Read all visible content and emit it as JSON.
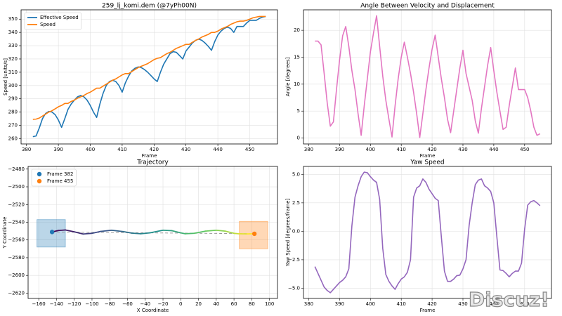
{
  "chart_data": [
    {
      "type": "line",
      "title": "259_lj_komi.dem (@7yPh00N)",
      "x_label": "Frame",
      "y_label": "Speed [units/s]",
      "grid": true,
      "legend": "upper-left",
      "x": [
        382,
        383,
        384,
        385,
        386,
        387,
        388,
        389,
        390,
        391,
        392,
        393,
        394,
        395,
        396,
        397,
        398,
        399,
        400,
        401,
        402,
        403,
        404,
        405,
        406,
        407,
        408,
        409,
        410,
        411,
        412,
        413,
        414,
        415,
        416,
        417,
        418,
        419,
        420,
        421,
        422,
        423,
        424,
        425,
        426,
        427,
        428,
        429,
        430,
        431,
        432,
        433,
        434,
        435,
        436,
        437,
        438,
        439,
        440,
        441,
        442,
        443,
        444,
        445,
        446,
        447,
        448,
        449,
        450,
        451,
        452,
        453,
        454,
        455
      ],
      "xlim": [
        378.3,
        458.7
      ],
      "xticks": [
        380,
        390,
        400,
        410,
        420,
        430,
        440,
        450
      ],
      "ylim": [
        256,
        357
      ],
      "yticks": [
        260,
        270,
        280,
        290,
        300,
        310,
        320,
        330,
        340,
        350
      ],
      "series": [
        {
          "name": "Effective Speed",
          "color": "#1f77b4",
          "values": [
            261.5,
            262,
            268,
            275,
            279,
            280.5,
            280,
            278,
            274,
            268.5,
            275,
            282,
            286,
            289,
            291.5,
            292.5,
            291.5,
            289,
            285,
            280,
            276,
            286,
            294,
            300,
            303,
            304,
            303,
            300,
            295,
            302,
            307,
            311,
            313,
            314,
            313.5,
            312,
            310,
            307.5,
            305,
            303,
            310,
            316,
            320,
            324,
            325.5,
            325,
            322.5,
            320,
            326,
            329,
            332,
            334,
            335,
            334,
            332,
            329.5,
            326.5,
            333,
            338,
            341,
            343,
            344,
            343,
            340,
            344.5,
            344.5,
            344.5,
            347,
            349,
            349,
            349,
            350.5,
            351.5,
            352
          ]
        },
        {
          "name": "Speed",
          "color": "#ff7f0e",
          "values": [
            274.5,
            274.7,
            275.5,
            277,
            278.5,
            280,
            281,
            282.5,
            284,
            285,
            286.5,
            286.5,
            288,
            289,
            290.5,
            291.5,
            292.5,
            294,
            295,
            296.5,
            298,
            298,
            299.5,
            301,
            302.5,
            304,
            305,
            306.5,
            308,
            309,
            309,
            310.5,
            312,
            313.5,
            314.5,
            315.5,
            316.5,
            318,
            319.5,
            320.5,
            321,
            322.5,
            324,
            325,
            326.5,
            328,
            329,
            330,
            331,
            331,
            332.5,
            334,
            335,
            336.5,
            337.5,
            338.5,
            340,
            340,
            341,
            342.5,
            343.5,
            344.5,
            346,
            347,
            348,
            348.5,
            348.5,
            349,
            350,
            351,
            351.5,
            352,
            352,
            352
          ]
        }
      ]
    },
    {
      "type": "line",
      "title": "Angle Between Velocity and Displacement",
      "x_label": "Frame",
      "y_label": "Angle [degrees]",
      "grid": true,
      "x": [
        382,
        383,
        384,
        385,
        386,
        387,
        388,
        389,
        390,
        391,
        392,
        393,
        394,
        395,
        396,
        397,
        398,
        399,
        400,
        401,
        402,
        403,
        404,
        405,
        406,
        407,
        408,
        409,
        410,
        411,
        412,
        413,
        414,
        415,
        416,
        417,
        418,
        419,
        420,
        421,
        422,
        423,
        424,
        425,
        426,
        427,
        428,
        429,
        430,
        431,
        432,
        433,
        434,
        435,
        436,
        437,
        438,
        439,
        440,
        441,
        442,
        443,
        444,
        445,
        446,
        447,
        448,
        449,
        450,
        451,
        452,
        453,
        454,
        455
      ],
      "xlim": [
        378.3,
        458.7
      ],
      "xticks": [
        380,
        390,
        400,
        410,
        420,
        430,
        440,
        450
      ],
      "ylim": [
        -1.1,
        23.8
      ],
      "yticks": [
        0,
        5,
        10,
        15,
        20
      ],
      "series": [
        {
          "color": "#e377c2",
          "values": [
            18,
            18,
            17.3,
            12,
            6.5,
            2.2,
            3,
            9,
            14.5,
            19,
            20.7,
            17,
            12.5,
            9,
            4.5,
            0.5,
            6,
            11,
            16,
            19.5,
            22.7,
            17,
            11.5,
            7,
            3.5,
            0.2,
            6,
            11,
            15,
            17.8,
            15,
            12,
            8.5,
            4.5,
            0.1,
            4.5,
            9,
            13,
            16.5,
            19.1,
            15,
            11,
            7.5,
            3.5,
            1,
            5,
            9,
            13,
            16.3,
            12,
            9.5,
            7,
            3.2,
            0.9,
            5.5,
            9.5,
            13.5,
            16.8,
            12.5,
            8.5,
            5,
            1.6,
            2,
            6,
            9.5,
            13,
            9,
            9,
            9,
            7.5,
            5,
            2,
            0.5,
            0.8
          ]
        }
      ]
    },
    {
      "type": "trajectory",
      "title": "Trajectory",
      "x_label": "X Coordinate",
      "y_label": "Y Coordinate",
      "grid": true,
      "legend": "upper-left",
      "xlim": [
        -172,
        109
      ],
      "xticks": [
        {
          "value": -160,
          "label": "−160"
        },
        {
          "value": -140,
          "label": "−140"
        },
        {
          "value": -120,
          "label": "−120"
        },
        {
          "value": -100,
          "label": "−100"
        },
        {
          "value": -80,
          "label": "−80"
        },
        {
          "value": -60,
          "label": "−60"
        },
        {
          "value": -40,
          "label": "−40"
        },
        {
          "value": -20,
          "label": "−20"
        },
        0,
        20,
        40,
        60,
        80,
        100
      ],
      "ylim": [
        -2626,
        -2477
      ],
      "yticks": [
        {
          "value": -2620,
          "label": "−2620"
        },
        {
          "value": -2600,
          "label": "−2600"
        },
        {
          "value": -2580,
          "label": "−2580"
        },
        {
          "value": -2560,
          "label": "−2560"
        },
        {
          "value": -2540,
          "label": "−2540"
        },
        {
          "value": -2520,
          "label": "−2520"
        },
        {
          "value": -2500,
          "label": "−2500"
        },
        {
          "value": -2480,
          "label": "−2480"
        }
      ],
      "colormap": [
        "#440154",
        "#3b528b",
        "#21918c",
        "#5ec962",
        "#fde725"
      ],
      "path": {
        "x": [
          -145,
          -138,
          -130,
          -120,
          -110,
          -100,
          -90,
          -78,
          -65,
          -55,
          -45,
          -35,
          -20,
          -10,
          0,
          5,
          15,
          28,
          40,
          50,
          60,
          65,
          75,
          83
        ],
        "y": [
          -2551,
          -2549.3,
          -2548.7,
          -2550.8,
          -2553.3,
          -2552.5,
          -2550.3,
          -2549,
          -2550.5,
          -2552.3,
          -2553,
          -2552,
          -2549,
          -2549.5,
          -2552,
          -2553,
          -2552.5,
          -2550,
          -2549,
          -2550,
          -2552.5,
          -2553,
          -2553.2,
          -2553
        ]
      },
      "markers": [
        {
          "name": "Frame 382",
          "x": -145,
          "y": -2551,
          "color": "#1f77b4"
        },
        {
          "name": "Frame 455",
          "x": 83,
          "y": -2553,
          "color": "#ff7f0e"
        }
      ],
      "regions": [
        {
          "xlim": [
            -162,
            -130
          ],
          "ylim": [
            -2568,
            -2537
          ],
          "color": "#1f77b4"
        },
        {
          "xlim": [
            66,
            98
          ],
          "ylim": [
            -2570,
            -2539
          ],
          "color": "#ff7f0e"
        }
      ]
    },
    {
      "type": "line",
      "title": "Yaw Speed",
      "x_label": "Frame",
      "y_label": "Yaw Speed [degrees/frame]",
      "grid": true,
      "x": [
        382,
        383,
        384,
        385,
        386,
        387,
        388,
        389,
        390,
        391,
        392,
        393,
        394,
        395,
        396,
        397,
        398,
        399,
        400,
        401,
        402,
        403,
        404,
        405,
        406,
        407,
        408,
        409,
        410,
        411,
        412,
        413,
        414,
        415,
        416,
        417,
        418,
        419,
        420,
        421,
        422,
        423,
        424,
        425,
        426,
        427,
        428,
        429,
        430,
        431,
        432,
        433,
        434,
        435,
        436,
        437,
        438,
        439,
        440,
        441,
        442,
        443,
        444,
        445,
        446,
        447,
        448,
        449,
        450,
        451,
        452,
        453,
        454,
        455
      ],
      "xlim": [
        378.3,
        458.7
      ],
      "xticks": [
        380,
        390,
        400,
        410,
        420,
        430,
        440,
        450
      ],
      "ylim": [
        -5.9,
        5.7
      ],
      "yticks": [
        {
          "value": -5,
          "label": "−5.0"
        },
        {
          "value": -2.5,
          "label": "−2.5"
        },
        {
          "value": 0,
          "label": "0.0"
        },
        {
          "value": 2.5,
          "label": "2.5"
        },
        {
          "value": 5,
          "label": "5.0"
        }
      ],
      "series": [
        {
          "color": "#9467bd",
          "values": [
            -3.1,
            -3.7,
            -4.3,
            -4.9,
            -5.2,
            -5.4,
            -5.1,
            -4.8,
            -4.5,
            -4.3,
            -4.0,
            -3.3,
            0.5,
            3.0,
            4.0,
            4.8,
            5.2,
            5.15,
            4.8,
            4.5,
            4.3,
            2.8,
            -1.5,
            -3.8,
            -4.4,
            -4.8,
            -5.1,
            -4.6,
            -4.2,
            -4.0,
            -3.6,
            -2.5,
            3.0,
            3.8,
            4.0,
            4.6,
            4.3,
            3.7,
            3.3,
            2.9,
            2.7,
            -0.5,
            -3.5,
            -4.4,
            -4.4,
            -4.2,
            -3.9,
            -3.85,
            -3.3,
            -2.5,
            0.5,
            2.5,
            4.1,
            4.5,
            4.6,
            4.0,
            3.8,
            3.5,
            2.5,
            -0.5,
            -3.4,
            -3.45,
            -3.7,
            -4.0,
            -3.7,
            -3.5,
            -3.5,
            -2.8,
            0.2,
            2.3,
            2.6,
            2.7,
            2.5,
            2.25
          ]
        }
      ]
    }
  ],
  "watermark": "Discuz!"
}
